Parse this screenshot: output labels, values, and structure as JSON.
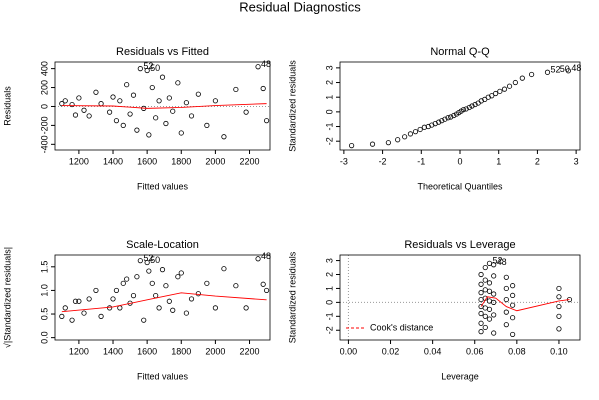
{
  "title": "Residual Diagnostics",
  "chart_data": [
    {
      "type": "scatter",
      "title": "Residuals vs Fitted",
      "xlabel": "Fitted values",
      "ylabel": "Residuals",
      "x": [
        1100,
        1120,
        1160,
        1180,
        1200,
        1230,
        1260,
        1300,
        1330,
        1380,
        1400,
        1420,
        1440,
        1460,
        1480,
        1500,
        1520,
        1540,
        1560,
        1580,
        1600,
        1610,
        1630,
        1650,
        1670,
        1690,
        1710,
        1730,
        1750,
        1780,
        1800,
        1830,
        1860,
        1900,
        1950,
        2000,
        2050,
        2120,
        2180,
        2250,
        2280,
        2300
      ],
      "values": [
        30,
        60,
        20,
        -90,
        90,
        -40,
        -100,
        150,
        30,
        -60,
        100,
        -150,
        60,
        -200,
        230,
        -80,
        120,
        -250,
        400,
        -20,
        380,
        -300,
        200,
        -120,
        60,
        310,
        -180,
        90,
        -50,
        250,
        -280,
        40,
        -100,
        130,
        -200,
        60,
        -320,
        180,
        -60,
        420,
        190,
        -150
      ],
      "color": "#000000",
      "smooth": {
        "color": "#ff0000",
        "x": [
          1100,
          1400,
          1600,
          1800,
          2000,
          2300
        ],
        "values": [
          10,
          5,
          -20,
          -10,
          10,
          30
        ]
      },
      "hline": 0,
      "annotations": [
        {
          "text": "52",
          "x": 1560,
          "y": 400
        },
        {
          "text": "50",
          "x": 1600,
          "y": 380
        },
        {
          "text": "48",
          "x": 2250,
          "y": 420
        }
      ],
      "xlim": [
        1060,
        2320
      ],
      "xticks": [
        1200,
        1400,
        1600,
        1800,
        2000,
        2200
      ],
      "ylim": [
        -460,
        470
      ],
      "yticks": [
        -400,
        -200,
        0,
        200,
        400
      ]
    },
    {
      "type": "scatter",
      "title": "Normal Q-Q",
      "xlabel": "Theoretical Quantiles",
      "ylabel": "Standardized residuals",
      "x": [
        -2.8,
        -2.26,
        -1.85,
        -1.61,
        -1.43,
        -1.28,
        -1.15,
        -1.03,
        -0.92,
        -0.82,
        -0.73,
        -0.64,
        -0.55,
        -0.47,
        -0.39,
        -0.31,
        -0.24,
        -0.16,
        -0.09,
        -0.03,
        0.03,
        0.09,
        0.16,
        0.24,
        0.31,
        0.39,
        0.47,
        0.55,
        0.64,
        0.73,
        0.82,
        0.92,
        1.03,
        1.15,
        1.28,
        1.43,
        1.61,
        1.85,
        2.26,
        2.8
      ],
      "values": [
        -2.3,
        -2.2,
        -2.1,
        -1.9,
        -1.7,
        -1.5,
        -1.35,
        -1.2,
        -1.05,
        -1.0,
        -0.9,
        -0.8,
        -0.7,
        -0.6,
        -0.5,
        -0.4,
        -0.35,
        -0.25,
        -0.15,
        -0.05,
        0.05,
        0.15,
        0.2,
        0.3,
        0.4,
        0.5,
        0.6,
        0.75,
        0.85,
        1.0,
        1.1,
        1.25,
        1.4,
        1.55,
        1.75,
        2.0,
        2.3,
        2.55,
        2.7,
        2.8
      ],
      "color": "#000000",
      "annotations": [
        {
          "text": "52",
          "x": 2.26,
          "y": 2.7
        },
        {
          "text": "50",
          "x": 2.5,
          "y": 2.75
        },
        {
          "text": "48",
          "x": 2.8,
          "y": 2.8
        }
      ],
      "xlim": [
        -3.1,
        3.1
      ],
      "xticks": [
        -3,
        -2,
        -1,
        0,
        1,
        2,
        3
      ],
      "ylim": [
        -2.6,
        3.4
      ],
      "yticks": [
        -2,
        -1,
        0,
        1,
        2,
        3
      ]
    },
    {
      "type": "scatter",
      "title": "Scale-Location",
      "xlabel": "Fitted values",
      "ylabel": "√|Standardized residuals|",
      "x": [
        1100,
        1120,
        1160,
        1180,
        1200,
        1230,
        1260,
        1300,
        1330,
        1380,
        1400,
        1420,
        1440,
        1460,
        1480,
        1500,
        1520,
        1540,
        1560,
        1580,
        1600,
        1610,
        1630,
        1650,
        1670,
        1690,
        1710,
        1730,
        1750,
        1780,
        1800,
        1830,
        1860,
        1900,
        1950,
        2000,
        2050,
        2120,
        2180,
        2250,
        2280,
        2300
      ],
      "values": [
        0.45,
        0.63,
        0.37,
        0.77,
        0.77,
        0.52,
        0.82,
        1.0,
        0.45,
        0.63,
        0.82,
        1.0,
        0.63,
        1.15,
        1.24,
        0.73,
        0.89,
        1.29,
        1.63,
        0.37,
        1.59,
        1.41,
        1.15,
        0.89,
        0.63,
        1.44,
        1.1,
        0.77,
        0.58,
        1.29,
        1.37,
        0.52,
        0.82,
        0.93,
        1.15,
        0.63,
        1.46,
        1.1,
        0.63,
        1.67,
        1.13,
        1.0
      ],
      "color": "#000000",
      "smooth": {
        "color": "#ff0000",
        "x": [
          1100,
          1400,
          1600,
          1800,
          2000,
          2300
        ],
        "values": [
          0.55,
          0.65,
          0.8,
          0.95,
          0.88,
          0.8
        ]
      },
      "annotations": [
        {
          "text": "52",
          "x": 1560,
          "y": 1.63
        },
        {
          "text": "50",
          "x": 1600,
          "y": 1.59
        },
        {
          "text": "48",
          "x": 2250,
          "y": 1.67
        }
      ],
      "xlim": [
        1060,
        2320
      ],
      "xticks": [
        1200,
        1400,
        1600,
        1800,
        2000,
        2200
      ],
      "ylim": [
        -0.05,
        1.75
      ],
      "yticks": [
        {
          "value": 0,
          "label": "0.0"
        },
        {
          "value": 0.5,
          "label": "0.5"
        },
        {
          "value": 1,
          "label": "1.0"
        },
        {
          "value": 1.5,
          "label": "1.5"
        }
      ]
    },
    {
      "type": "scatter",
      "title": "Residuals vs Leverage",
      "xlabel": "Leverage",
      "ylabel": "Standardized residuals",
      "x": [
        0.063,
        0.063,
        0.063,
        0.063,
        0.063,
        0.063,
        0.063,
        0.063,
        0.065,
        0.065,
        0.065,
        0.065,
        0.065,
        0.065,
        0.065,
        0.067,
        0.067,
        0.067,
        0.067,
        0.067,
        0.067,
        0.069,
        0.069,
        0.069,
        0.069,
        0.069,
        0.069,
        0.075,
        0.075,
        0.075,
        0.075,
        0.075,
        0.078,
        0.078,
        0.078,
        0.078,
        0.078,
        0.1,
        0.1,
        0.1,
        0.1,
        0.1,
        0.105
      ],
      "values": [
        -2.1,
        -1.5,
        -0.8,
        -0.3,
        0.2,
        0.7,
        1.3,
        2.0,
        -1.8,
        -1.0,
        -0.4,
        0.3,
        0.9,
        1.6,
        2.5,
        -1.2,
        -0.5,
        0.1,
        0.8,
        1.4,
        2.8,
        -2.2,
        -0.9,
        0,
        0.6,
        1.9,
        2.7,
        -1.6,
        -0.7,
        0.2,
        1.0,
        1.8,
        -2.3,
        -1.1,
        -0.2,
        0.5,
        1.2,
        -1.9,
        -1.0,
        -0.3,
        0.4,
        1.0,
        0.2
      ],
      "color": "#000000",
      "smooth": {
        "color": "#ff0000",
        "x": [
          0.063,
          0.066,
          0.07,
          0.075,
          0.08,
          0.1,
          0.105
        ],
        "values": [
          -0.3,
          0.4,
          0.3,
          -0.3,
          -0.6,
          0.1,
          0.2
        ]
      },
      "hline": 0,
      "vline": 0,
      "annotations": [
        {
          "text": "52",
          "x": 0.067,
          "y": 2.8
        },
        {
          "text": "48",
          "x": 0.069,
          "y": 2.7
        }
      ],
      "legend": {
        "label": "Cook's distance",
        "color": "#ff0000",
        "position": "bottom-left"
      },
      "xlim": [
        -0.004,
        0.11
      ],
      "xticks": [
        {
          "value": 0,
          "label": "0.00"
        },
        {
          "value": 0.02,
          "label": "0.02"
        },
        {
          "value": 0.04,
          "label": "0.04"
        },
        {
          "value": 0.06,
          "label": "0.06"
        },
        {
          "value": 0.08,
          "label": "0.08"
        },
        {
          "value": 0.1,
          "label": "0.10"
        }
      ],
      "ylim": [
        -2.7,
        3.4
      ],
      "yticks": [
        -2,
        -1,
        0,
        1,
        2,
        3
      ]
    }
  ]
}
